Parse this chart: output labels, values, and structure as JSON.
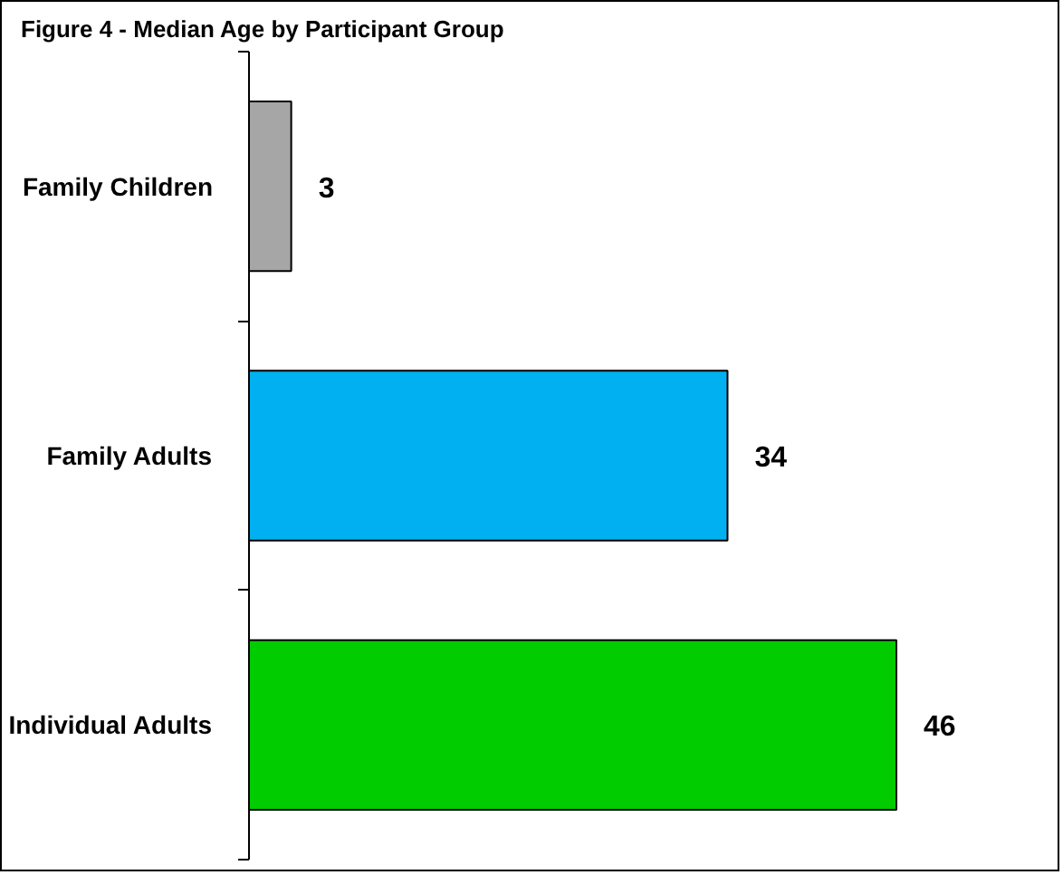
{
  "chart_data": {
    "type": "bar",
    "orientation": "horizontal",
    "title": "Figure 4 - Median Age by Participant Group",
    "categories": [
      "Family Children",
      "Family Adults",
      "Individual Adults"
    ],
    "values": [
      3,
      34,
      46
    ],
    "colors": [
      "#a6a6a6",
      "#00b0f0",
      "#00cc00"
    ],
    "data_labels": true
  }
}
